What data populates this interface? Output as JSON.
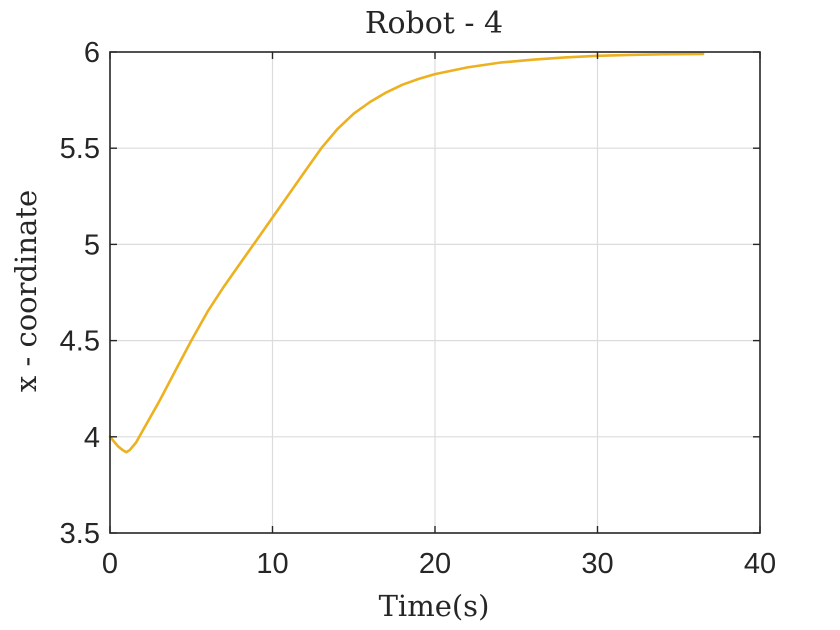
{
  "chart_data": {
    "type": "line",
    "title": "Robot - 4",
    "xlabel": "Time(s)",
    "ylabel": "x - coordinate",
    "xlim": [
      0,
      40
    ],
    "ylim": [
      3.5,
      6
    ],
    "xticks": [
      0,
      10,
      20,
      30,
      40
    ],
    "yticks": [
      3.5,
      4,
      4.5,
      5,
      5.5,
      6
    ],
    "xtick_labels": [
      "0",
      "10",
      "20",
      "30",
      "40"
    ],
    "ytick_labels": [
      "3.5",
      "4",
      "4.5",
      "5",
      "5.5",
      "6"
    ],
    "grid": true,
    "series": [
      {
        "color": "#EDB120",
        "x": [
          0,
          0.5,
          0.8,
          1.0,
          1.2,
          1.6,
          2,
          3,
          4,
          5,
          6,
          7,
          8,
          9,
          10,
          11,
          12,
          13,
          14,
          15,
          16,
          17,
          18,
          19,
          20,
          22,
          24,
          26,
          28,
          30,
          32,
          34,
          36.5
        ],
        "y": [
          4.0,
          3.95,
          3.93,
          3.92,
          3.93,
          3.97,
          4.03,
          4.18,
          4.34,
          4.5,
          4.65,
          4.78,
          4.9,
          5.02,
          5.14,
          5.26,
          5.38,
          5.5,
          5.6,
          5.68,
          5.74,
          5.79,
          5.83,
          5.86,
          5.885,
          5.92,
          5.945,
          5.96,
          5.972,
          5.98,
          5.985,
          5.988,
          5.99
        ]
      }
    ]
  }
}
